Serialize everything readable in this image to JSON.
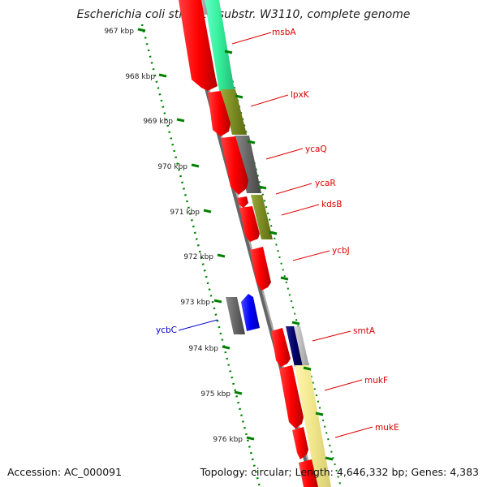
{
  "title": "Escherichia coli str. K-12 substr. W3110, complete genome",
  "accession": "Accession: AC_000091",
  "topology": "Topology: circular; Length: 4,646,332 bp; Genes: 4,383",
  "ruler_ticks": [
    "967 kbp",
    "968 kbp",
    "969 kbp",
    "970 kbp",
    "971 kbp",
    "972 kbp",
    "973 kbp",
    "974 kbp",
    "975 kbp",
    "976 kbp"
  ],
  "genes": [
    {
      "name": "msbA",
      "color": "#dd0000",
      "strand": "forward"
    },
    {
      "name": "lpxK",
      "color": "#dd0000",
      "strand": "forward"
    },
    {
      "name": "ycaQ",
      "color": "#dd0000",
      "strand": "forward"
    },
    {
      "name": "ycaR",
      "color": "#dd0000",
      "strand": "forward"
    },
    {
      "name": "kdsB",
      "color": "#dd0000",
      "strand": "forward"
    },
    {
      "name": "ycbJ",
      "color": "#dd0000",
      "strand": "forward"
    },
    {
      "name": "ycbC",
      "color": "#0000cc",
      "strand": "reverse"
    },
    {
      "name": "smtA",
      "color": "#dd0000",
      "strand": "forward"
    },
    {
      "name": "mukF",
      "color": "#dd0000",
      "strand": "forward"
    },
    {
      "name": "mukE",
      "color": "#dd0000",
      "strand": "forward"
    }
  ],
  "colors": {
    "forward_gene": "#ff0000",
    "reverse_gene": "#0000ff",
    "backbone": "#888888",
    "ruler": "#008000",
    "cog_green": "#33ee99",
    "cog_olive": "#7a8a22",
    "cog_gray": "#666666",
    "cog_navy": "#000066",
    "cog_yellow": "#f0e68c"
  }
}
